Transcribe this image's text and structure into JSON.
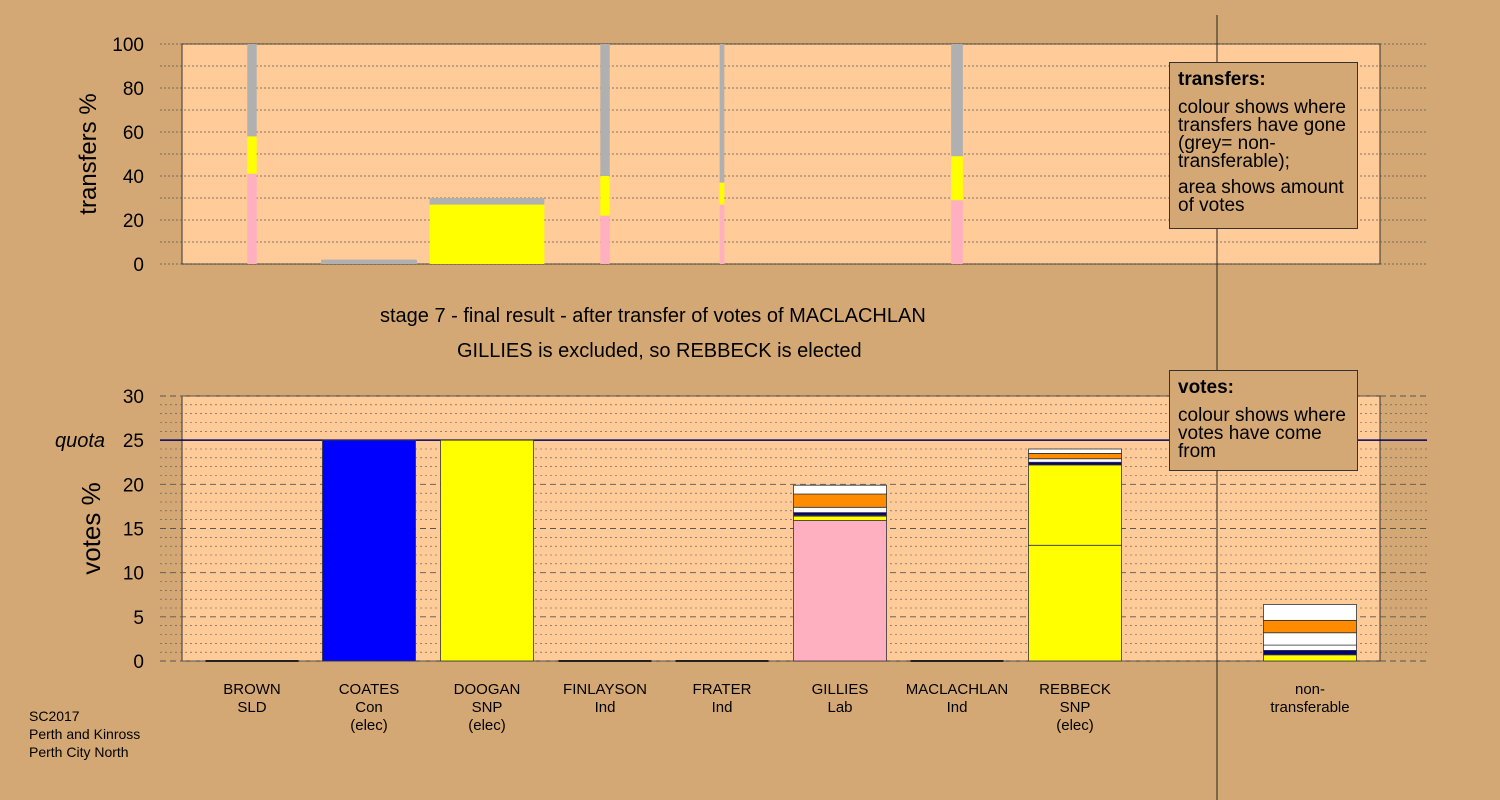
{
  "colors": {
    "background": "#d4a874",
    "plot_bg": "#ffcc99",
    "non_transferable": "#b0b0b0",
    "Lab": "#ffb0c0",
    "SNP": "#ffff00",
    "Con": "#0000ff",
    "SLD": "#ff8c00",
    "Ind": "#ffffff",
    "Green": "#000080",
    "quota_line": "#000066"
  },
  "texts": {
    "stage_line1": "stage 7 - final result - after transfer of votes of MACLACHLAN",
    "stage_line2": "GILLIES is excluded, so REBBECK is elected",
    "transfers_title": "transfers:",
    "transfers_text1": "colour shows where transfers have gone (grey= non-transferable);",
    "transfers_text2": "area shows amount of votes",
    "votes_title": "votes:",
    "votes_text": "colour shows where votes have come from",
    "footer": [
      "SC2017",
      "Perth and Kinross",
      "Perth City North"
    ]
  },
  "chart_data": [
    {
      "type": "bar",
      "chart": "transfers",
      "ylabel": "transfers %",
      "ylim": [
        0,
        100
      ],
      "yticks": [
        0,
        20,
        40,
        60,
        80,
        100
      ],
      "grid": true,
      "categories": [
        "BROWN",
        "COATES",
        "DOOGAN",
        "FINLAYSON",
        "FRATER",
        "GILLIES",
        "MACLACHLAN",
        "REBBECK"
      ],
      "bars": [
        {
          "candidate": "BROWN",
          "share": 0.08,
          "segments": [
            {
              "party": "Lab",
              "value": 41
            },
            {
              "party": "SNP",
              "value": 17
            },
            {
              "party": "non-transferable",
              "value": 42
            }
          ]
        },
        {
          "candidate": "COATES",
          "share": 0.82,
          "segments": [
            {
              "party": "non-transferable",
              "value": 2
            }
          ]
        },
        {
          "candidate": "DOOGAN",
          "share": 0.98,
          "segments": [
            {
              "party": "SNP",
              "value": 27
            },
            {
              "party": "non-transferable",
              "value": 3
            }
          ]
        },
        {
          "candidate": "FINLAYSON",
          "share": 0.08,
          "segments": [
            {
              "party": "Lab",
              "value": 22
            },
            {
              "party": "SNP",
              "value": 18
            },
            {
              "party": "non-transferable",
              "value": 60
            }
          ]
        },
        {
          "candidate": "FRATER",
          "share": 0.04,
          "segments": [
            {
              "party": "Lab",
              "value": 27
            },
            {
              "party": "SNP",
              "value": 10
            },
            {
              "party": "non-transferable",
              "value": 63
            }
          ]
        },
        {
          "candidate": "MACLACHLAN",
          "share": 0.1,
          "segments": [
            {
              "party": "Lab",
              "value": 29
            },
            {
              "party": "SNP",
              "value": 20
            },
            {
              "party": "non-transferable",
              "value": 51
            }
          ]
        }
      ]
    },
    {
      "type": "bar",
      "chart": "votes",
      "ylabel": "votes %",
      "ylim": [
        0,
        30
      ],
      "yticks": [
        0,
        5,
        10,
        15,
        20,
        25,
        30
      ],
      "quota": 25,
      "quota_label": "quota",
      "grid": true,
      "categories": [
        {
          "name": "BROWN",
          "party": "SLD",
          "status": ""
        },
        {
          "name": "COATES",
          "party": "Con",
          "status": "(elec)"
        },
        {
          "name": "DOOGAN",
          "party": "SNP",
          "status": "(elec)"
        },
        {
          "name": "FINLAYSON",
          "party": "Ind",
          "status": ""
        },
        {
          "name": "FRATER",
          "party": "Ind",
          "status": ""
        },
        {
          "name": "GILLIES",
          "party": "Lab",
          "status": ""
        },
        {
          "name": "MACLACHLAN",
          "party": "Ind",
          "status": ""
        },
        {
          "name": "REBBECK",
          "party": "SNP",
          "status": "(elec)"
        },
        {
          "name": "non-",
          "party": "transferable",
          "status": ""
        }
      ],
      "bars": [
        {
          "candidate": "BROWN",
          "segments": []
        },
        {
          "candidate": "COATES",
          "segments": [
            {
              "party": "Con",
              "value": 25
            }
          ]
        },
        {
          "candidate": "DOOGAN",
          "segments": [
            {
              "party": "SNP",
              "value": 25
            }
          ]
        },
        {
          "candidate": "FINLAYSON",
          "segments": []
        },
        {
          "candidate": "FRATER",
          "segments": []
        },
        {
          "candidate": "GILLIES",
          "segments": [
            {
              "party": "Lab",
              "value": 15.9
            },
            {
              "party": "SNP",
              "value": 0.5
            },
            {
              "party": "Con",
              "value": 0.1
            },
            {
              "party": "Green",
              "value": 0.3
            },
            {
              "party": "Ind",
              "value": 0.6
            },
            {
              "party": "SLD",
              "value": 1.5
            },
            {
              "party": "Ind",
              "value": 1.0
            }
          ]
        },
        {
          "candidate": "MACLACHLAN",
          "segments": []
        },
        {
          "candidate": "REBBECK",
          "segments": [
            {
              "party": "SNP",
              "value": 13.1
            },
            {
              "party": "SNP",
              "value": 9.1
            },
            {
              "party": "Green",
              "value": 0.3
            },
            {
              "party": "Ind",
              "value": 0.4
            },
            {
              "party": "SLD",
              "value": 0.6
            },
            {
              "party": "Ind",
              "value": 0.5
            }
          ]
        },
        {
          "candidate": "non-transferable",
          "segments": [
            {
              "party": "SNP",
              "value": 0.7
            },
            {
              "party": "Green",
              "value": 0.5
            },
            {
              "party": "Ind",
              "value": 0.6
            },
            {
              "party": "Ind",
              "value": 1.4
            },
            {
              "party": "SLD",
              "value": 1.4
            },
            {
              "party": "Ind",
              "value": 1.8
            }
          ]
        }
      ]
    }
  ]
}
